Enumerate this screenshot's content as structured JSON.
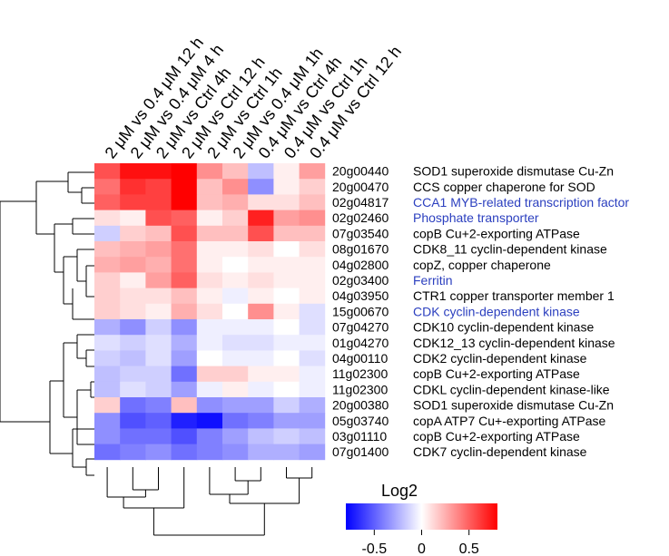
{
  "chart_data": {
    "type": "heatmap",
    "columns": [
      "2 μM vs 0.4 μM 12 h",
      "2 μM vs 0.4 μM 4 h",
      "2 μM vs Ctrl 4h",
      "2 μM vs Ctrl 12 h",
      "2 μM vs Ctrl 1h",
      "2 μM vs 0.4 μM 1h",
      "0.4 μM vs Ctrl 4h",
      "0.4 μM vs Ctrl 1h",
      "0.4 μM vs Ctrl 12 h"
    ],
    "rows": [
      {
        "id": "20g00440",
        "desc": "SOD1 superoxide dismutase Cu-Zn",
        "highlight": false
      },
      {
        "id": "20g00470",
        "desc": "CCS copper chaperone for SOD",
        "highlight": false
      },
      {
        "id": "02g04817",
        "desc": "CCA1 MYB-related transcription factor",
        "highlight": true
      },
      {
        "id": "02g02460",
        "desc": "Phosphate transporter",
        "highlight": true
      },
      {
        "id": "07g03540",
        "desc": "copB  Cu+2-exporting ATPase",
        "highlight": false
      },
      {
        "id": "08g01670",
        "desc": "CDK8_11 cyclin-dependent kinase",
        "highlight": false
      },
      {
        "id": "04g02800",
        "desc": "copZ, copper chaperone",
        "highlight": false
      },
      {
        "id": "02g03400",
        "desc": "Ferritin",
        "highlight": true
      },
      {
        "id": "04g03950",
        "desc": "CTR1 copper transporter member 1",
        "highlight": false
      },
      {
        "id": "15g00670",
        "desc": "CDK  cyclin-dependent kinase",
        "highlight": true
      },
      {
        "id": "07g04270",
        "desc": "CDK10 cyclin-dependent kinase",
        "highlight": false
      },
      {
        "id": "01g04270",
        "desc": "CDK12_13 cyclin-dependent kinase",
        "highlight": false
      },
      {
        "id": "04g00110",
        "desc": "CDK2 cyclin-dependent kinase",
        "highlight": false
      },
      {
        "id": "11g02300",
        "desc": "copB Cu+2-exporting ATPase",
        "highlight": false
      },
      {
        "id": "11g02300",
        "desc": "CDKL cyclin-dependent kinase-like",
        "highlight": false
      },
      {
        "id": "20g00380",
        "desc": "SOD1 superoxide dismutase Cu-Zn",
        "highlight": false
      },
      {
        "id": "05g03740",
        "desc": "copA ATP7 Cu+-exporting ATPase",
        "highlight": false
      },
      {
        "id": "03g01110",
        "desc": "copB Cu+2-exporting ATPase",
        "highlight": false
      },
      {
        "id": "07g01400",
        "desc": "CDK7 cyclin-dependent kinase",
        "highlight": false
      }
    ],
    "values": [
      [
        0.55,
        0.75,
        0.75,
        0.9,
        0.35,
        0.2,
        -0.2,
        0.05,
        0.3
      ],
      [
        0.45,
        0.65,
        0.6,
        0.9,
        0.2,
        0.35,
        -0.35,
        0.05,
        0.15
      ],
      [
        0.5,
        0.6,
        0.6,
        0.95,
        0.2,
        0.25,
        0.1,
        0.1,
        0.2
      ],
      [
        0.1,
        0.05,
        0.55,
        0.5,
        0.05,
        0.15,
        0.7,
        0.3,
        0.35
      ],
      [
        -0.15,
        0.15,
        0.2,
        0.55,
        0.2,
        0.2,
        0.55,
        0.2,
        0.2
      ],
      [
        0.2,
        0.25,
        0.3,
        0.45,
        0.05,
        0.05,
        0.1,
        0.0,
        0.1
      ],
      [
        0.25,
        0.3,
        0.25,
        0.45,
        0.05,
        0.0,
        0.05,
        0.05,
        0.05
      ],
      [
        0.15,
        0.05,
        0.3,
        0.5,
        0.1,
        0.05,
        0.1,
        0.05,
        0.05
      ],
      [
        0.15,
        0.1,
        0.1,
        0.2,
        0.05,
        -0.05,
        0.05,
        0.0,
        0.05
      ],
      [
        0.15,
        0.1,
        0.05,
        0.25,
        0.1,
        0.0,
        0.35,
        0.05,
        -0.1
      ],
      [
        -0.25,
        -0.35,
        -0.15,
        -0.35,
        -0.05,
        -0.05,
        -0.05,
        0.0,
        -0.1
      ],
      [
        -0.1,
        -0.15,
        -0.1,
        -0.25,
        -0.05,
        -0.1,
        -0.1,
        -0.05,
        -0.05
      ],
      [
        -0.15,
        -0.2,
        -0.1,
        -0.3,
        0.0,
        -0.05,
        -0.05,
        0.0,
        -0.1
      ],
      [
        -0.2,
        -0.15,
        -0.15,
        -0.45,
        0.15,
        0.15,
        0.05,
        0.05,
        -0.05
      ],
      [
        -0.2,
        -0.1,
        -0.15,
        -0.3,
        -0.05,
        0.05,
        -0.05,
        0.0,
        -0.05
      ],
      [
        0.15,
        -0.45,
        -0.4,
        0.2,
        -0.35,
        -0.3,
        -0.3,
        -0.15,
        -0.25
      ],
      [
        -0.35,
        -0.55,
        -0.5,
        -0.7,
        -0.75,
        -0.45,
        -0.4,
        -0.3,
        -0.3
      ],
      [
        -0.35,
        -0.45,
        -0.45,
        -0.55,
        -0.4,
        -0.3,
        -0.2,
        -0.15,
        -0.2
      ],
      [
        -0.45,
        -0.4,
        -0.35,
        -0.45,
        -0.4,
        -0.35,
        -0.25,
        -0.25,
        -0.3
      ]
    ],
    "legend": {
      "title": "Log2",
      "ticks": [
        "-0.5",
        "0",
        "0.5"
      ],
      "tick_values": [
        -0.5,
        0,
        0.5
      ],
      "range": [
        -0.8,
        0.8
      ]
    },
    "colors": {
      "low": "#0000ff",
      "mid": "#ffffff",
      "high": "#ff0000"
    }
  }
}
